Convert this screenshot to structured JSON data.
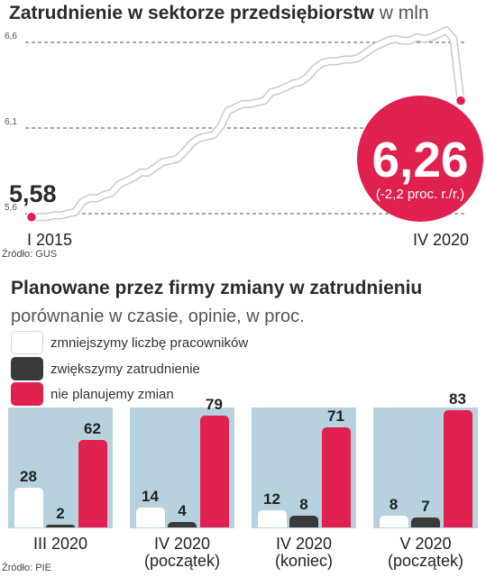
{
  "chart_data": [
    {
      "type": "line",
      "title": "Zatrudnienie w sektorze przedsiębiorstw",
      "title_unit": "w mln",
      "yticks": [
        "6,6",
        "6,1",
        "5,6"
      ],
      "ytick_values": [
        6.6,
        6.1,
        5.6
      ],
      "ylim": [
        5.5,
        6.7
      ],
      "grid": "dashed",
      "x_start_label": "I 2015",
      "x_end_label": "IV 2020",
      "start_value_label": "5,58",
      "end_value_label": "6,26",
      "end_change_label": "(-2,2 proc. r./r.)",
      "values": [
        5.58,
        5.58,
        5.58,
        5.59,
        5.59,
        5.6,
        5.61,
        5.67,
        5.69,
        5.69,
        5.71,
        5.72,
        5.77,
        5.79,
        5.81,
        5.84,
        5.84,
        5.87,
        5.9,
        5.91,
        5.92,
        5.96,
        6.01,
        6.04,
        6.05,
        6.06,
        6.11,
        6.2,
        6.22,
        6.24,
        6.24,
        6.25,
        6.26,
        6.31,
        6.32,
        6.34,
        6.36,
        6.37,
        6.4,
        6.45,
        6.48,
        6.49,
        6.49,
        6.5,
        6.5,
        6.51,
        6.54,
        6.57,
        6.59,
        6.61,
        6.62,
        6.61,
        6.61,
        6.63,
        6.62,
        6.63,
        6.65,
        6.67,
        6.62,
        6.26
      ],
      "source": "Źródło: GUS",
      "line_color": "#ffffff",
      "highlight_color": "#e0204f"
    },
    {
      "type": "bar",
      "title": "Planowane przez firmy zmiany w zatrudnieniu",
      "subtitle": "porównanie w czasie, opinie, w proc.",
      "categories": [
        [
          "III 2020"
        ],
        [
          "IV 2020",
          "(początek)"
        ],
        [
          "IV 2020",
          "(koniec)"
        ],
        [
          "V 2020",
          "(początek)"
        ]
      ],
      "series": [
        {
          "name": "zmniejszymy liczbę pracowników",
          "color": "#ffffff",
          "values": [
            28,
            14,
            12,
            8
          ]
        },
        {
          "name": "zwiększymy zatrudnienie",
          "color": "#3a3a3a",
          "values": [
            2,
            4,
            8,
            7
          ]
        },
        {
          "name": "nie planujemy zmian",
          "color": "#e0204f",
          "values": [
            62,
            79,
            71,
            83
          ]
        }
      ],
      "ylim": [
        0,
        83
      ],
      "panel_color": "#b7d2de",
      "source": "Źródło: PIE"
    }
  ]
}
